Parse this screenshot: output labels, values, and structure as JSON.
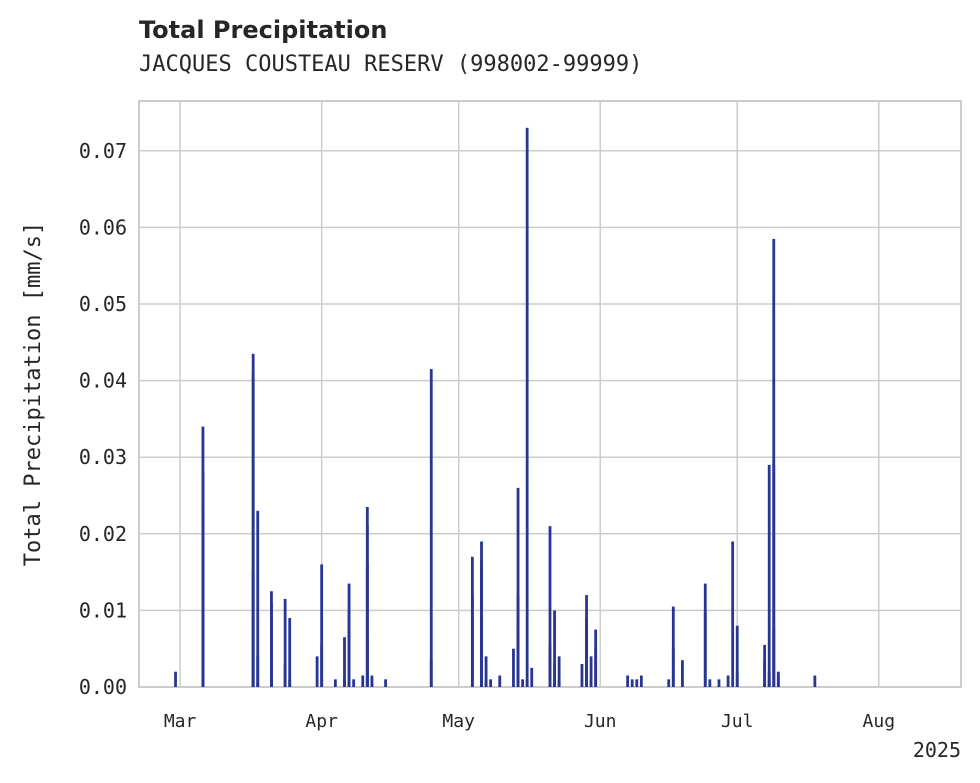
{
  "chart_data": {
    "type": "bar",
    "title": "Total Precipitation",
    "subtitle": "JACQUES COUSTEAU RESERV (998002-99999)",
    "ylabel": "Total Precipitation [mm/s]",
    "xlabel": "",
    "year_label": "2025",
    "xlim": [
      "2025-02-20",
      "2025-08-19"
    ],
    "ylim": [
      0,
      0.0765
    ],
    "grid": true,
    "legend": "none",
    "yticks": [
      "0.00",
      "0.01",
      "0.02",
      "0.03",
      "0.04",
      "0.05",
      "0.06",
      "0.07"
    ],
    "xticks": [
      {
        "date": "2025-03-01",
        "label": "Mar"
      },
      {
        "date": "2025-04-01",
        "label": "Apr"
      },
      {
        "date": "2025-05-01",
        "label": "May"
      },
      {
        "date": "2025-06-01",
        "label": "Jun"
      },
      {
        "date": "2025-07-01",
        "label": "Jul"
      },
      {
        "date": "2025-08-01",
        "label": "Aug"
      }
    ],
    "series": [
      {
        "color": "#283593",
        "x": [
          "2025-02-28",
          "2025-03-06",
          "2025-03-06",
          "2025-03-06",
          "2025-03-06",
          "2025-03-06",
          "2025-03-17",
          "2025-03-17",
          "2025-03-17",
          "2025-03-17",
          "2025-03-18",
          "2025-03-18",
          "2025-03-18",
          "2025-03-21",
          "2025-03-21",
          "2025-03-21",
          "2025-03-21",
          "2025-03-24",
          "2025-03-24",
          "2025-03-25",
          "2025-03-25",
          "2025-03-31",
          "2025-04-01",
          "2025-04-01",
          "2025-04-04",
          "2025-04-06",
          "2025-04-06",
          "2025-04-07",
          "2025-04-07",
          "2025-04-07",
          "2025-04-08",
          "2025-04-10",
          "2025-04-11",
          "2025-04-11",
          "2025-04-11",
          "2025-04-11",
          "2025-04-12",
          "2025-04-12",
          "2025-04-15",
          "2025-04-25",
          "2025-04-25",
          "2025-05-04",
          "2025-05-04",
          "2025-05-06",
          "2025-05-06",
          "2025-05-06",
          "2025-05-07",
          "2025-05-07",
          "2025-05-08",
          "2025-05-10",
          "2025-05-13",
          "2025-05-14",
          "2025-05-14",
          "2025-05-14",
          "2025-05-15",
          "2025-05-16",
          "2025-05-16",
          "2025-05-17",
          "2025-05-21",
          "2025-05-21",
          "2025-05-22",
          "2025-05-22",
          "2025-05-23",
          "2025-05-23",
          "2025-05-28",
          "2025-05-29",
          "2025-05-29",
          "2025-05-30",
          "2025-05-30",
          "2025-05-31",
          "2025-05-31",
          "2025-06-07",
          "2025-06-08",
          "2025-06-09",
          "2025-06-10",
          "2025-06-16",
          "2025-06-17",
          "2025-06-17",
          "2025-06-19",
          "2025-06-24",
          "2025-06-24",
          "2025-06-25",
          "2025-06-27",
          "2025-06-29",
          "2025-06-30",
          "2025-07-01",
          "2025-07-01",
          "2025-07-07",
          "2025-07-07",
          "2025-07-08",
          "2025-07-08",
          "2025-07-08",
          "2025-07-09",
          "2025-07-09",
          "2025-07-09",
          "2025-07-10",
          "2025-07-10",
          "2025-07-18"
        ],
        "y": [
          0.002,
          0.005,
          0.028,
          0.034,
          0.023,
          0.004,
          0.001,
          0.015,
          0.041,
          0.0435,
          0.023,
          0.004,
          0.0005,
          0.001,
          0.0125,
          0.011,
          0.001,
          0.003,
          0.0115,
          0.009,
          0.001,
          0.004,
          0.016,
          0.0055,
          0.001,
          0.001,
          0.0065,
          0.0135,
          0.01,
          0.001,
          0.001,
          0.0015,
          0.0065,
          0.016,
          0.0235,
          0.021,
          0.0015,
          0.001,
          0.001,
          0.0035,
          0.0415,
          0.017,
          0.012,
          0.019,
          0.0165,
          0.001,
          0.001,
          0.004,
          0.001,
          0.0015,
          0.005,
          0.008,
          0.012,
          0.026,
          0.001,
          0.001,
          0.073,
          0.0025,
          0.0055,
          0.021,
          0.01,
          0.003,
          0.004,
          0.001,
          0.003,
          0.012,
          0.009,
          0.001,
          0.004,
          0.0075,
          0.005,
          0.0015,
          0.001,
          0.001,
          0.0015,
          0.001,
          0.0105,
          0.005,
          0.0035,
          0.01,
          0.0135,
          0.001,
          0.001,
          0.0015,
          0.019,
          0.008,
          0.002,
          0.0055,
          0.0035,
          0.001,
          0.029,
          0.002,
          0.029,
          0.0585,
          0.008,
          0.002,
          0.0015,
          0.0015
        ]
      }
    ]
  }
}
